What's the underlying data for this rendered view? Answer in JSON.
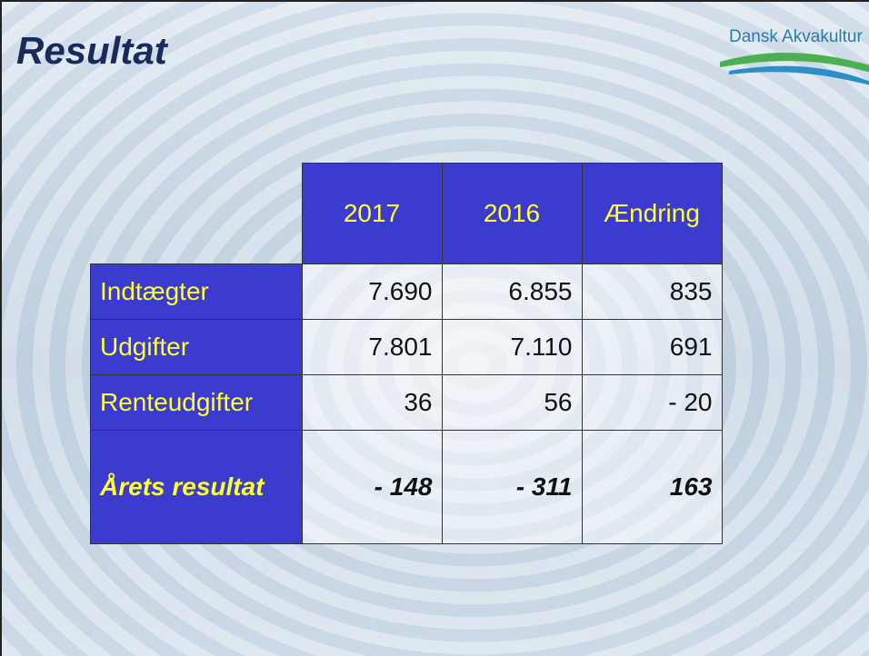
{
  "header": {
    "title": "Resultat",
    "logo": "Dansk Akvakultur"
  },
  "table": {
    "columns": [
      "2017",
      "2016",
      "Ændring"
    ],
    "rows": [
      {
        "label": "Indtægter",
        "cells": [
          "7.690",
          "6.855",
          "835"
        ]
      },
      {
        "label": "Udgifter",
        "cells": [
          "7.801",
          "7.110",
          "691"
        ]
      },
      {
        "label": "Renteudgifter",
        "cells": [
          "36",
          "56",
          "- 20"
        ]
      },
      {
        "label": "Årets resultat",
        "cells": [
          "- 148",
          "- 311",
          "163"
        ]
      }
    ]
  }
}
